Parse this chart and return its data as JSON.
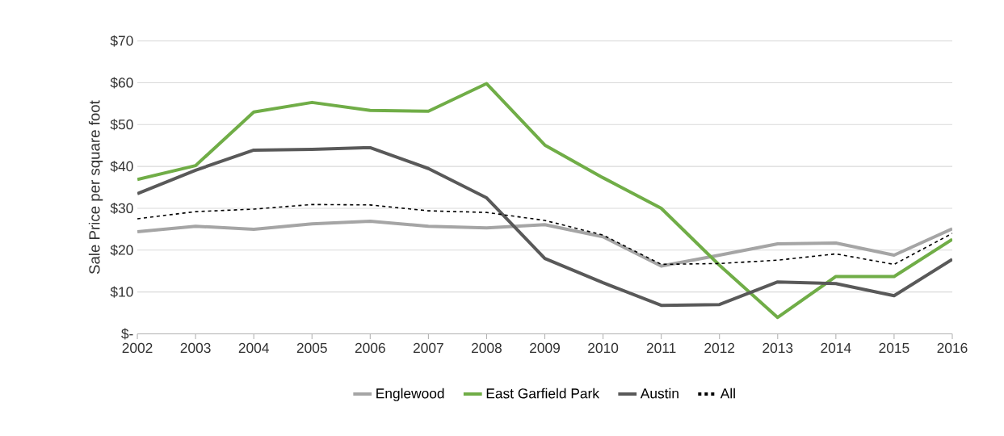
{
  "chart_data": {
    "type": "line",
    "ylabel": "Sale Price per square foot",
    "categories": [
      "2002",
      "2003",
      "2004",
      "2005",
      "2006",
      "2007",
      "2008",
      "2009",
      "2010",
      "2011",
      "2012",
      "2013",
      "2014",
      "2015",
      "2016"
    ],
    "series": [
      {
        "name": "Englewood",
        "color": "#a5a5a5",
        "values": [
          24.4,
          25.7,
          25.0,
          26.3,
          26.9,
          25.7,
          25.3,
          26.1,
          23.2,
          16.2,
          18.8,
          21.5,
          21.7,
          18.8,
          25.1
        ]
      },
      {
        "name": "East Garfield Park",
        "color": "#70ad47",
        "values": [
          36.9,
          40.2,
          53.0,
          55.3,
          53.4,
          53.2,
          59.8,
          45.1,
          37.3,
          30.0,
          16.4,
          3.9,
          13.7,
          13.7,
          22.6
        ]
      },
      {
        "name": "Austin",
        "color": "#595959",
        "values": [
          33.5,
          39.1,
          43.9,
          44.1,
          44.5,
          39.5,
          32.5,
          18.0,
          12.2,
          6.8,
          7.0,
          12.4,
          12.0,
          9.1,
          17.8
        ]
      },
      {
        "name": "All",
        "color": "#000000",
        "line_style": "dashed",
        "values": [
          27.5,
          29.2,
          29.8,
          30.9,
          30.8,
          29.4,
          29.0,
          27.1,
          23.6,
          16.6,
          16.8,
          17.6,
          19.1,
          16.6,
          24.0
        ]
      }
    ],
    "ylim": [
      0,
      70
    ],
    "yticks": [
      {
        "value": 0,
        "label": "$-"
      },
      {
        "value": 10,
        "label": "$10"
      },
      {
        "value": 20,
        "label": "$20"
      },
      {
        "value": 30,
        "label": "$30"
      },
      {
        "value": 40,
        "label": "$40"
      },
      {
        "value": 50,
        "label": "$50"
      },
      {
        "value": 60,
        "label": "$60"
      },
      {
        "value": 70,
        "label": "$70"
      }
    ],
    "grid": "y",
    "legend": "bottom"
  }
}
